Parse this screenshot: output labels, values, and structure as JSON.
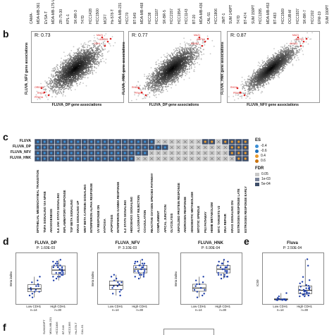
{
  "panel_a_top_labels": [
    "CAMA-",
    "MDA-MB-361",
    "EVSA-T",
    "MDA-MB-175-VII",
    "ZR-75-30",
    "KPL-1",
    "SK-BR-3",
    "T47D",
    "HCC1428",
    "HCC1500",
    "MCF7",
    "Hs-578-T",
    "MDA-MB-231",
    "HCC70",
    "BT-549",
    "MDA-MB-468",
    "HCC38",
    "HCC1187",
    "SK-BR-5",
    "HCC2157",
    "HCC1954",
    "HCC1143",
    "BT-20",
    "MDA-MB-436",
    "CAL-51",
    "HCC1806",
    "JIMT-1",
    "SUM 149PT",
    "T47D",
    "BT-474",
    "SUM 159PT",
    "HCC1395",
    "MDA-MB-453",
    "BT-483",
    "HCC1569",
    "OCUB-M",
    "HCC1937",
    "SK-BR-7",
    "HCC202",
    "EFM-19",
    "SUM 190PT"
  ],
  "panel_b": {
    "letter": "b",
    "plots": [
      {
        "r": "R: 0.73",
        "xlabel": "FLUVA_DP gene associations",
        "ylabel": "FLUVA_NFV gene associations",
        "labels": [
          "MAZ1",
          "AMPK4",
          "OXHL",
          "OR51E1",
          "RHOA",
          "PRAGA"
        ],
        "chart_data": {
          "type": "scatter",
          "title": "",
          "xlabel": "FLUVA_DP gene associations",
          "ylabel": "FLUVA_NFV gene associations",
          "correlation": 0.73
        }
      },
      {
        "r": "R: 0.77",
        "xlabel": "FLUVA_DP gene associations",
        "ylabel": "FLUVA_HNK gene associations",
        "labels": [
          "MAZ1",
          "AMPK4",
          "ANXA1",
          "RHOA",
          "PRAGA"
        ],
        "chart_data": {
          "type": "scatter",
          "title": "",
          "xlabel": "FLUVA_DP gene associations",
          "ylabel": "FLUVA_HNK gene associations",
          "correlation": 0.77
        }
      },
      {
        "r": "R: 0.87",
        "xlabel": "FLUVA_NFV gene associations",
        "ylabel": "FLUVA_HNK gene associations",
        "labels": [
          "MAZ1",
          "AMPK4",
          "ANXA1",
          "RHOA",
          "PRAGA"
        ],
        "chart_data": {
          "type": "scatter",
          "title": "",
          "xlabel": "FLUVA_NFV gene associations",
          "ylabel": "FLUVA_HNK gene associations",
          "correlation": 0.87
        }
      }
    ]
  },
  "panel_c": {
    "letter": "c",
    "rows": [
      "FLUVA",
      "FLUVA_DP",
      "FLUVA_NFV",
      "FLUVA_HNK"
    ],
    "columns": [
      "EPITHELIAL MESENCHYMAL TRANSITION",
      "TNFA SIGNALING VIA NFKB",
      "ANGIOGENESIS",
      "IL6 JAK STAT3 SIGNALING",
      "INFLAMMATORY RESPONSE",
      "TGF BETA SIGNALING",
      "KRAS SIGNALING UP",
      "WNT BETA CATENIN SIGNALING",
      "INTERFERON ALPHA RESPONSE",
      "UV RESPONSE DN",
      "HYPOXIA",
      "APOPTOSIS",
      "INTERFERON GAMMA RESPONSE",
      "IL2 STAT5 SIGNALING",
      "HEDGEHOG SIGNALING",
      "ALLOGRAFT REJECTION",
      "COAGULATION",
      "REACTIVE OXYGEN SPECIES PATHWAY",
      "COMPLEMENT",
      "APICAL JUNCTION",
      "GLYCOLYSIS",
      "UNFOLDED PROTEIN RESPONSE",
      "ANDROGEN RESPONSE",
      "XENOBIOTIC METABOLISM",
      "MITOTIC SPINDLE",
      "P53 PATHWAY",
      "HEME METABOLISM",
      "MYC TARGETS V2",
      "DNA REPAIR",
      "KRAS SIGNALING DN",
      "ESTROGEN RESPONSE LATE",
      "ESTROGEN RESPONSE EARLY"
    ],
    "legend": {
      "es_title": "ES",
      "es_items": [
        "-0.4",
        "-0.6",
        "0.4",
        "0.6"
      ],
      "fdr_title": "FDR",
      "fdr_items": [
        "0.05",
        "1e-03",
        "5e-04"
      ]
    },
    "chart_data": {
      "type": "heatmap",
      "rows": [
        "FLUVA",
        "FLUVA_DP",
        "FLUVA_NFV",
        "FLUVA_HNK"
      ],
      "es_sign": [
        [
          "neg",
          "neg",
          "neg",
          "neg",
          "neg",
          "neg",
          "neg",
          "neg",
          "neg",
          "neg",
          "neg",
          "neg",
          "neg",
          "neg",
          "neg",
          "neg",
          "neg",
          "neg",
          "neg",
          "neg",
          "neg",
          "neg",
          "neg",
          "neg",
          "pos",
          "pos",
          "pos",
          "pos",
          "pos",
          "pos",
          "pos",
          "pos"
        ],
        [
          "neg",
          "neg",
          "neg",
          "neg",
          "neg",
          "neg",
          "neg",
          "neg",
          "neg",
          "neg",
          "neg",
          "neg",
          "neg",
          "neg",
          "neg",
          "neg",
          "neg",
          "neg",
          "neg",
          "neg",
          "neg",
          "neg",
          "neg",
          "neg",
          "pos",
          "pos",
          "pos",
          "pos",
          "pos",
          "pos",
          "pos",
          "pos"
        ],
        [
          "neg",
          "neg",
          "neg",
          "neg",
          "neg",
          "neg",
          "neg",
          "neg",
          "neg",
          "neg",
          "neg",
          "neg",
          "neg",
          "neg",
          "neg",
          "neg",
          "neg",
          "neg",
          "neg",
          "neg",
          "neg",
          "neg",
          "neg",
          "pos",
          "pos",
          "pos",
          "pos",
          "pos",
          "pos",
          "pos",
          "pos",
          "pos"
        ],
        [
          "neg",
          "neg",
          "neg",
          "neg",
          "neg",
          "neg",
          "neg",
          "neg",
          "neg",
          "neg",
          "neg",
          "neg",
          "neg",
          "neg",
          "neg",
          "neg",
          "neg",
          "neg",
          "neg",
          "neg",
          "neg",
          "neg",
          "neg",
          "pos",
          "pos",
          "pos",
          "pos",
          "pos",
          "pos",
          "pos",
          "pos",
          "pos"
        ]
      ],
      "significant": [
        [
          1,
          1,
          1,
          1,
          1,
          1,
          1,
          1,
          1,
          1,
          1,
          1,
          1,
          1,
          1,
          1,
          1,
          1,
          0,
          0,
          0,
          0,
          0,
          0,
          0,
          1,
          1,
          0,
          1,
          1,
          1,
          1
        ],
        [
          1,
          1,
          1,
          1,
          1,
          1,
          1,
          1,
          1,
          1,
          1,
          1,
          1,
          1,
          1,
          1,
          1,
          1,
          1,
          1,
          0,
          0,
          0,
          0,
          0,
          0,
          0,
          0,
          0,
          1,
          1,
          1
        ],
        [
          1,
          1,
          1,
          1,
          1,
          1,
          1,
          1,
          1,
          1,
          1,
          1,
          1,
          1,
          1,
          1,
          1,
          0,
          0,
          0,
          0,
          0,
          0,
          0,
          0,
          0,
          0,
          0,
          0,
          1,
          1,
          1
        ],
        [
          1,
          1,
          1,
          1,
          1,
          1,
          1,
          1,
          1,
          1,
          1,
          1,
          1,
          1,
          1,
          0,
          0,
          0,
          0,
          0,
          0,
          0,
          0,
          0,
          0,
          0,
          0,
          0,
          0,
          0,
          1,
          1
        ]
      ]
    }
  },
  "panel_d": {
    "letter": "d",
    "plots": [
      {
        "title": "FLUVA_DP",
        "p": "P: 1.60E-03",
        "ylabel": "Beta index",
        "cats": [
          "Low CDH1",
          "High CDH1"
        ],
        "ns": [
          "n=14",
          "n=30"
        ],
        "chart_data": {
          "type": "box",
          "title": "FLUVA_DP",
          "categories": [
            "Low CDH1",
            "High CDH1"
          ],
          "low": [
            -0.2,
            -0.35,
            -0.1,
            -0.45,
            -0.3,
            -0.05,
            -0.25,
            -0.4,
            -0.15,
            -0.5,
            -0.3,
            -0.2,
            0.05,
            -0.35
          ],
          "high": [
            0.15,
            0.3,
            0.05,
            0.25,
            0.4,
            0.1,
            0.35,
            0.2,
            0.45,
            0.0,
            0.3,
            0.15,
            0.25,
            0.5,
            0.1,
            0.35,
            0.2,
            0.05,
            0.3,
            0.4,
            0.15,
            -0.05,
            0.25,
            0.35,
            0.1,
            0.45,
            0.2,
            0.3,
            0.05,
            0.15
          ]
        }
      },
      {
        "title": "FLUVA_NFV",
        "p": "P: 3.10E-03",
        "ylabel": "Beta index",
        "cats": [
          "Low CDH1",
          "High CDH1"
        ],
        "ns": [
          "n=14",
          "n=30"
        ],
        "chart_data": {
          "type": "box",
          "title": "FLUVA_NFV",
          "categories": [
            "Low CDH1",
            "High CDH1"
          ],
          "low": [
            -0.1,
            -0.3,
            -0.2,
            0.05,
            -0.4,
            -0.15,
            -0.25,
            0.1,
            -0.35,
            -0.05,
            -0.2,
            -0.45,
            -0.1,
            0.0
          ],
          "high": [
            0.2,
            0.35,
            0.1,
            0.25,
            0.45,
            0.15,
            0.3,
            0.05,
            0.4,
            0.2,
            0.35,
            0.25,
            0.1,
            0.5,
            0.3,
            0.15,
            0.4,
            0.2,
            0.05,
            0.35,
            0.25,
            0.45,
            0.1,
            0.3,
            0.2,
            0.0,
            0.35,
            0.15,
            0.25,
            0.4
          ]
        }
      },
      {
        "title": "FLUVA_HNK",
        "p": "P: 6.90E-04",
        "ylabel": "Beta index",
        "cats": [
          "Low CDH1",
          "High CDH1"
        ],
        "ns": [
          "n=14",
          "n=30"
        ],
        "chart_data": {
          "type": "box",
          "title": "FLUVA_HNK",
          "categories": [
            "Low CDH1",
            "High CDH1"
          ],
          "low": [
            -0.25,
            -0.4,
            -0.15,
            -0.3,
            -0.05,
            -0.45,
            -0.2,
            -0.35,
            -0.1,
            -0.5,
            -0.25,
            0.05,
            -0.3,
            -0.15
          ],
          "high": [
            0.1,
            0.25,
            0.4,
            0.05,
            0.3,
            0.2,
            0.45,
            0.15,
            0.35,
            0.0,
            0.25,
            0.5,
            0.1,
            0.3,
            0.2,
            0.4,
            0.05,
            0.35,
            0.15,
            0.25,
            0.45,
            0.1,
            0.3,
            0.2,
            0.35,
            0.4,
            0.15,
            0.05,
            0.25,
            0.3
          ]
        }
      }
    ]
  },
  "panel_e": {
    "letter": "e",
    "title": "Fluva",
    "p": "P: 2.50E-04",
    "ylabel": "IC50",
    "cats": [
      "Low CDH1",
      "High CDH1"
    ],
    "ns": [
      "n=14",
      "n=30"
    ],
    "chart_data": {
      "type": "box",
      "title": "Fluva",
      "categories": [
        "Low CDH1",
        "High CDH1"
      ],
      "low": [
        0.1,
        0.05,
        0.15,
        0.08,
        0.2,
        0.12,
        0.06,
        0.3,
        0.09,
        0.14,
        0.07,
        0.11,
        0.5,
        0.1
      ],
      "high": [
        0.4,
        0.6,
        0.3,
        0.8,
        1.2,
        0.5,
        0.9,
        0.35,
        0.7,
        1.5,
        0.45,
        0.65,
        1.0,
        0.55,
        2.2,
        0.4,
        0.75,
        0.3,
        1.1,
        0.6,
        0.85,
        0.5,
        0.95,
        0.45,
        1.3,
        0.7,
        0.35,
        0.8,
        0.55,
        2.6
      ]
    }
  },
  "panel_f": {
    "letter": "f",
    "labels": [
      "SUM159PT",
      "MDA-MB-231",
      "HCC1806",
      "BT-549",
      "HCC1395",
      "Hs-578-T",
      "CAL-51"
    ]
  }
}
